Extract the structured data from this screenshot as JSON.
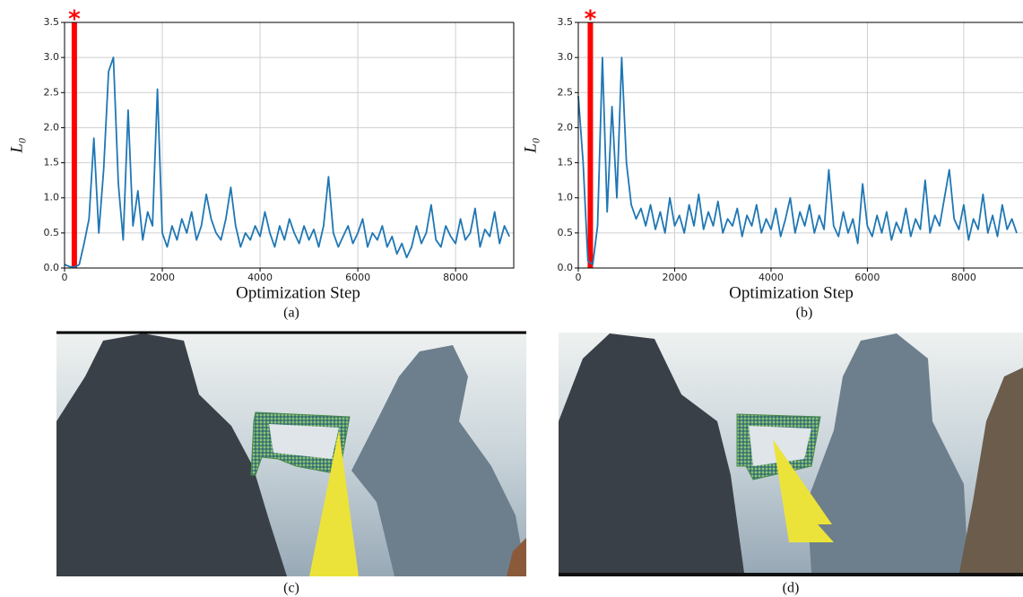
{
  "chart_data": [
    {
      "type": "line",
      "x_label": "Optimization Step",
      "y_label": "L₀",
      "caption": "(a)",
      "color": "#1f77b4",
      "grid": true,
      "xlim": [
        0,
        9190
      ],
      "ylim": [
        0,
        3.5
      ],
      "xticks": [
        0,
        2000,
        4000,
        6000,
        8000
      ],
      "yticks": [
        {
          "value": 0,
          "label": "0.0"
        },
        0.5,
        {
          "value": 1,
          "label": "1.0"
        },
        1.5,
        {
          "value": 2,
          "label": "2.0"
        },
        2.5,
        {
          "value": 3,
          "label": "3.0"
        },
        3.5
      ],
      "annotation": {
        "text": "*",
        "x": 200,
        "color": "#ff0000"
      },
      "x": [
        0,
        100,
        200,
        300,
        400,
        500,
        600,
        700,
        800,
        900,
        1000,
        1100,
        1200,
        1300,
        1400,
        1500,
        1600,
        1700,
        1800,
        1900,
        2000,
        2100,
        2200,
        2300,
        2400,
        2500,
        2600,
        2700,
        2800,
        2900,
        3000,
        3100,
        3200,
        3300,
        3400,
        3500,
        3600,
        3700,
        3800,
        3900,
        4000,
        4100,
        4200,
        4300,
        4400,
        4500,
        4600,
        4700,
        4800,
        4900,
        5000,
        5100,
        5200,
        5300,
        5400,
        5500,
        5600,
        5700,
        5800,
        5900,
        6000,
        6100,
        6200,
        6300,
        6400,
        6500,
        6600,
        6700,
        6800,
        6900,
        7000,
        7100,
        7200,
        7300,
        7400,
        7500,
        7600,
        7700,
        7800,
        7900,
        8000,
        8100,
        8200,
        8300,
        8400,
        8500,
        8600,
        8700,
        8800,
        8900,
        9000,
        9100
      ],
      "values": [
        0.05,
        0.02,
        0.01,
        0.05,
        0.35,
        0.7,
        1.85,
        0.5,
        1.4,
        2.8,
        3.0,
        1.2,
        0.4,
        2.25,
        0.6,
        1.1,
        0.4,
        0.8,
        0.6,
        2.55,
        0.5,
        0.3,
        0.6,
        0.4,
        0.7,
        0.5,
        0.8,
        0.4,
        0.6,
        1.05,
        0.7,
        0.5,
        0.4,
        0.7,
        1.15,
        0.6,
        0.3,
        0.5,
        0.4,
        0.6,
        0.45,
        0.8,
        0.5,
        0.3,
        0.6,
        0.4,
        0.7,
        0.5,
        0.35,
        0.6,
        0.4,
        0.55,
        0.3,
        0.6,
        1.3,
        0.5,
        0.3,
        0.45,
        0.6,
        0.35,
        0.5,
        0.7,
        0.3,
        0.5,
        0.4,
        0.6,
        0.3,
        0.45,
        0.2,
        0.35,
        0.15,
        0.3,
        0.6,
        0.35,
        0.5,
        0.9,
        0.4,
        0.3,
        0.6,
        0.45,
        0.35,
        0.7,
        0.4,
        0.5,
        0.85,
        0.3,
        0.55,
        0.45,
        0.8,
        0.35,
        0.6,
        0.45
      ]
    },
    {
      "type": "line",
      "x_label": "Optimization Step",
      "y_label": "L₀",
      "caption": "(b)",
      "color": "#1f77b4",
      "grid": true,
      "xlim": [
        0,
        9230
      ],
      "ylim": [
        0,
        3.5
      ],
      "xticks": [
        0,
        2000,
        4000,
        6000,
        8000
      ],
      "yticks": [
        {
          "value": 0,
          "label": "0.0"
        },
        0.5,
        {
          "value": 1,
          "label": "1.0"
        },
        1.5,
        {
          "value": 2,
          "label": "2.0"
        },
        2.5,
        {
          "value": 3,
          "label": "3.0"
        },
        3.5
      ],
      "annotation": {
        "text": "*",
        "x": 250,
        "color": "#ff0000"
      },
      "x": [
        0,
        100,
        200,
        300,
        400,
        500,
        600,
        700,
        800,
        900,
        1000,
        1100,
        1200,
        1300,
        1400,
        1500,
        1600,
        1700,
        1800,
        1900,
        2000,
        2100,
        2200,
        2300,
        2400,
        2500,
        2600,
        2700,
        2800,
        2900,
        3000,
        3100,
        3200,
        3300,
        3400,
        3500,
        3600,
        3700,
        3800,
        3900,
        4000,
        4100,
        4200,
        4300,
        4400,
        4500,
        4600,
        4700,
        4800,
        4900,
        5000,
        5100,
        5200,
        5300,
        5400,
        5500,
        5600,
        5700,
        5800,
        5900,
        6000,
        6100,
        6200,
        6300,
        6400,
        6500,
        6600,
        6700,
        6800,
        6900,
        7000,
        7100,
        7200,
        7300,
        7400,
        7500,
        7600,
        7700,
        7800,
        7900,
        8000,
        8100,
        8200,
        8300,
        8400,
        8500,
        8600,
        8700,
        8800,
        8900,
        9000,
        9100
      ],
      "values": [
        2.45,
        1.5,
        0.1,
        0.05,
        0.6,
        3.0,
        0.8,
        2.3,
        1.0,
        3.0,
        1.5,
        0.9,
        0.7,
        0.85,
        0.6,
        0.9,
        0.55,
        0.8,
        0.5,
        1.0,
        0.6,
        0.75,
        0.5,
        0.9,
        0.6,
        1.05,
        0.55,
        0.8,
        0.6,
        0.95,
        0.5,
        0.7,
        0.6,
        0.85,
        0.45,
        0.75,
        0.6,
        0.9,
        0.5,
        0.7,
        0.55,
        0.85,
        0.45,
        0.7,
        1.0,
        0.5,
        0.8,
        0.6,
        0.9,
        0.5,
        0.75,
        0.55,
        1.4,
        0.6,
        0.45,
        0.8,
        0.5,
        0.7,
        0.35,
        1.2,
        0.6,
        0.45,
        0.75,
        0.5,
        0.8,
        0.4,
        0.65,
        0.5,
        0.85,
        0.45,
        0.7,
        0.55,
        1.25,
        0.5,
        0.75,
        0.6,
        1.0,
        1.4,
        0.7,
        0.55,
        0.9,
        0.4,
        0.7,
        0.55,
        1.05,
        0.5,
        0.75,
        0.45,
        0.9,
        0.55,
        0.7,
        0.5
      ]
    }
  ],
  "images": [
    {
      "caption": "(c)"
    },
    {
      "caption": "(d)"
    }
  ]
}
